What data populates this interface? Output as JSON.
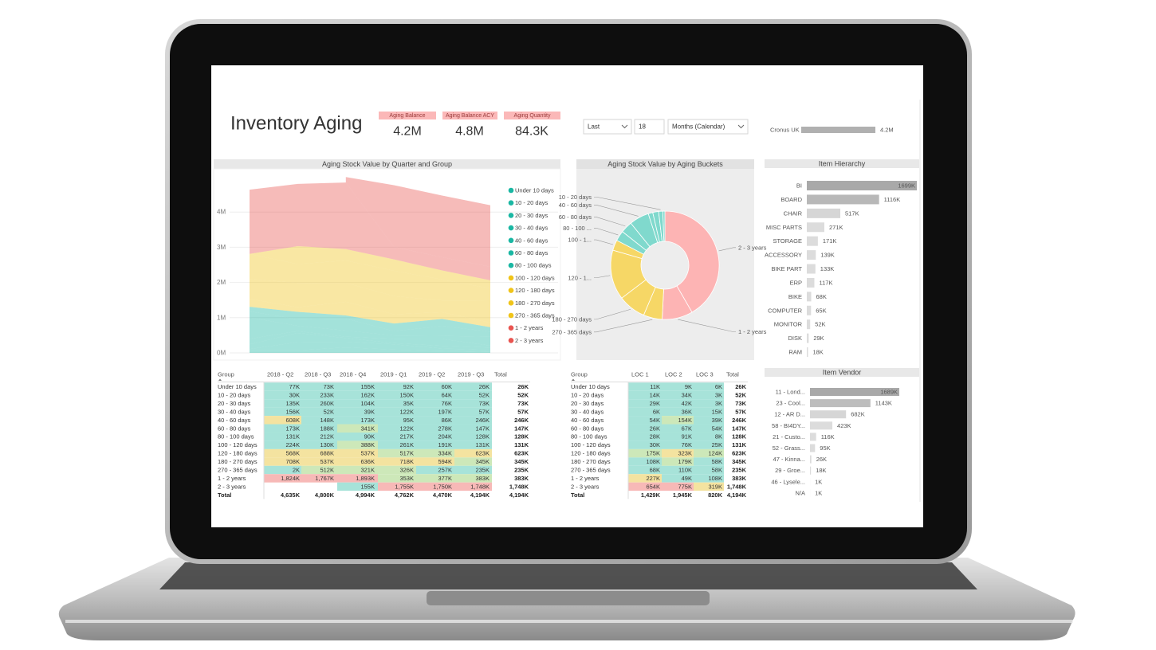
{
  "header": {
    "title": "Inventory Aging"
  },
  "cards": [
    {
      "label": "Aging Balance",
      "value": "4.2M"
    },
    {
      "label": "Aging Balance ACY",
      "value": "4.8M"
    },
    {
      "label": "Aging Quantity",
      "value": "84.3K"
    }
  ],
  "slicers": [
    "Last",
    "18",
    "Months (Calendar)"
  ],
  "chart_data": [
    {
      "type": "area",
      "title": "Aging Stock Value by Quarter and Group",
      "stacked": true,
      "ylim": [
        0,
        5000000
      ],
      "yticks": [
        {
          "value": 0,
          "label": "0M"
        },
        {
          "value": 1000000,
          "label": "1M"
        },
        {
          "value": 2000000,
          "label": "2M"
        },
        {
          "value": 3000000,
          "label": "3M"
        },
        {
          "value": 4000000,
          "label": "4M"
        }
      ],
      "grid": true,
      "legend": "right",
      "series": [
        {
          "name": "Under 10 days",
          "color": "#1ab7a3",
          "values": [
            77000,
            73000,
            155000,
            92000,
            60000,
            26000
          ]
        },
        {
          "name": "10 - 20 days",
          "color": "#1ab7a3",
          "values": [
            30000,
            233000,
            162000,
            150000,
            64000,
            52000
          ]
        },
        {
          "name": "20 - 30 days",
          "color": "#1ab7a3",
          "values": [
            135000,
            260000,
            104000,
            35000,
            76000,
            73000
          ]
        },
        {
          "name": "30 - 40 days",
          "color": "#1ab7a3",
          "values": [
            156000,
            52000,
            39000,
            122000,
            197000,
            57000
          ]
        },
        {
          "name": "40 - 60 days",
          "color": "#1ab7a3",
          "values": [
            608000,
            148000,
            173000,
            95000,
            86000,
            246000
          ]
        },
        {
          "name": "60 - 80 days",
          "color": "#1ab7a3",
          "values": [
            173000,
            188000,
            341000,
            122000,
            278000,
            147000
          ]
        },
        {
          "name": "80 - 100 days",
          "color": "#1ab7a3",
          "values": [
            131000,
            212000,
            90000,
            217000,
            204000,
            128000
          ]
        },
        {
          "name": "100 - 120 days",
          "color": "#f0c419",
          "values": [
            224000,
            130000,
            388000,
            261000,
            191000,
            131000
          ]
        },
        {
          "name": "120 - 180 days",
          "color": "#f0c419",
          "values": [
            568000,
            688000,
            537000,
            517000,
            334000,
            623000
          ]
        },
        {
          "name": "180 - 270 days",
          "color": "#f0c419",
          "values": [
            708000,
            537000,
            636000,
            718000,
            594000,
            345000
          ]
        },
        {
          "name": "270 - 365 days",
          "color": "#f0c419",
          "values": [
            2000,
            512000,
            321000,
            326000,
            257000,
            235000
          ]
        },
        {
          "name": "1 - 2 years",
          "color": "#e95450",
          "values": [
            1824000,
            1767000,
            1893000,
            353000,
            377000,
            383000
          ]
        },
        {
          "name": "2 - 3 years",
          "color": "#e95450",
          "values": [
            null,
            null,
            155000,
            1755000,
            1750000,
            1748000
          ]
        }
      ]
    },
    {
      "type": "donut",
      "title": "Aging Stock Value by Aging Buckets",
      "categories": [
        "2 - 3 years",
        "1 - 2 years",
        "270 - 365 days",
        "180 - 270 days",
        "120 - 1...",
        "100 - 1...",
        "80 - 100 ...",
        "60 - 80 days",
        "40 - 60 days",
        null,
        null,
        "10 - 20 days",
        null
      ],
      "values": [
        1748,
        383,
        235,
        345,
        623,
        131,
        128,
        147,
        246,
        57,
        73,
        52,
        26
      ],
      "colors": [
        "#fdb4b4",
        "#fdb4b4",
        "#f6d766",
        "#f6d766",
        "#f6d766",
        "#f6d766",
        "#80d9cd",
        "#80d9cd",
        "#80d9cd",
        "#80d9cd",
        "#80d9cd",
        "#80d9cd",
        "#80d9cd"
      ]
    },
    {
      "type": "hbar",
      "categories": [
        "Cronus UK"
      ],
      "values": [
        4.2
      ],
      "value_labels": [
        "4.2M"
      ],
      "colors": [
        "#b0b0b0"
      ]
    },
    {
      "type": "hbar",
      "title": "Item Hierarchy",
      "categories": [
        "BI",
        "BOARD",
        "CHAIR",
        "MISC PARTS",
        "STORAGE",
        "ACCESSORY",
        "BIKE PART",
        "ERP",
        "BIKE",
        "COMPUTER",
        "MONITOR",
        "DISK",
        "RAM"
      ],
      "values": [
        1699,
        1116,
        517,
        271,
        171,
        139,
        133,
        117,
        68,
        65,
        52,
        29,
        18
      ],
      "value_labels": [
        "1699K",
        "1116K",
        "517K",
        "271K",
        "171K",
        "139K",
        "133K",
        "117K",
        "68K",
        "65K",
        "52K",
        "29K",
        "18K"
      ],
      "colors": [
        "#a9a9a9",
        "#b8b8b8",
        "#d6d6d6",
        "#dcdcdc",
        "#dcdcdc",
        "#dcdcdc",
        "#dcdcdc",
        "#dcdcdc",
        "#dcdcdc",
        "#dcdcdc",
        "#dcdcdc",
        "#dcdcdc",
        "#dcdcdc"
      ]
    },
    {
      "type": "hbar",
      "title": "Item Vendor",
      "categories": [
        "11 - Lond...",
        "23 - Cool...",
        "12 - AR D...",
        "58 - BI4DY...",
        "21 - Custo...",
        "52 - Grass...",
        "47 - Kinna...",
        "29 - Groe...",
        "46 - Lysele...",
        "N/A"
      ],
      "values": [
        1689,
        1143,
        682,
        423,
        116,
        95,
        26,
        18,
        1,
        1
      ],
      "value_labels": [
        "1689K",
        "1143K",
        "682K",
        "423K",
        "116K",
        "95K",
        "26K",
        "18K",
        "1K",
        "1K"
      ],
      "colors": [
        "#a9a9a9",
        "#bdbdbd",
        "#d6d6d6",
        "#dcdcdc",
        "#dcdcdc",
        "#dcdcdc",
        "#dcdcdc",
        "#dcdcdc",
        "#dcdcdc",
        "#dcdcdc"
      ]
    }
  ],
  "tables": [
    {
      "columns": [
        "Group",
        "2018 - Q2",
        "2018 - Q3",
        "2018 - Q4",
        "2019 - Q1",
        "2019 - Q2",
        "2019 - Q3",
        "Total"
      ],
      "rows": [
        [
          "Under 10 days",
          "77K",
          "73K",
          "155K",
          "92K",
          "60K",
          "26K",
          "26K"
        ],
        [
          "10 - 20 days",
          "30K",
          "233K",
          "162K",
          "150K",
          "64K",
          "52K",
          "52K"
        ],
        [
          "20 - 30 days",
          "135K",
          "260K",
          "104K",
          "35K",
          "76K",
          "73K",
          "73K"
        ],
        [
          "30 - 40 days",
          "156K",
          "52K",
          "39K",
          "122K",
          "197K",
          "57K",
          "57K"
        ],
        [
          "40 - 60 days",
          "608K",
          "148K",
          "173K",
          "95K",
          "86K",
          "246K",
          "246K"
        ],
        [
          "60 - 80 days",
          "173K",
          "188K",
          "341K",
          "122K",
          "278K",
          "147K",
          "147K"
        ],
        [
          "80 - 100 days",
          "131K",
          "212K",
          "90K",
          "217K",
          "204K",
          "128K",
          "128K"
        ],
        [
          "100 - 120 days",
          "224K",
          "130K",
          "388K",
          "261K",
          "191K",
          "131K",
          "131K"
        ],
        [
          "120 - 180 days",
          "568K",
          "688K",
          "537K",
          "517K",
          "334K",
          "623K",
          "623K"
        ],
        [
          "180 - 270 days",
          "708K",
          "537K",
          "636K",
          "718K",
          "594K",
          "345K",
          "345K"
        ],
        [
          "270 - 365 days",
          "2K",
          "512K",
          "321K",
          "326K",
          "257K",
          "235K",
          "235K"
        ],
        [
          "1 - 2 years",
          "1,824K",
          "1,767K",
          "1,893K",
          "353K",
          "377K",
          "383K",
          "383K"
        ],
        [
          "2 - 3 years",
          null,
          null,
          "155K",
          "1,755K",
          "1,750K",
          "1,748K",
          "1,748K"
        ],
        [
          "Total",
          "4,635K",
          "4,800K",
          "4,994K",
          "4,762K",
          "4,470K",
          "4,194K",
          "4,194K"
        ]
      ]
    },
    {
      "columns": [
        "Group",
        "LOC 1",
        "LOC 2",
        "LOC 3",
        "Total"
      ],
      "rows": [
        [
          "Under 10 days",
          "11K",
          "9K",
          "6K",
          "26K"
        ],
        [
          "10 - 20 days",
          "14K",
          "34K",
          "3K",
          "52K"
        ],
        [
          "20 - 30 days",
          "29K",
          "42K",
          "3K",
          "73K"
        ],
        [
          "30 - 40 days",
          "6K",
          "36K",
          "15K",
          "57K"
        ],
        [
          "40 - 60 days",
          "54K",
          "154K",
          "39K",
          "246K"
        ],
        [
          "60 - 80 days",
          "26K",
          "67K",
          "54K",
          "147K"
        ],
        [
          "80 - 100 days",
          "28K",
          "91K",
          "8K",
          "128K"
        ],
        [
          "100 - 120 days",
          "30K",
          "76K",
          "25K",
          "131K"
        ],
        [
          "120 - 180 days",
          "175K",
          "323K",
          "124K",
          "623K"
        ],
        [
          "180 - 270 days",
          "108K",
          "179K",
          "58K",
          "345K"
        ],
        [
          "270 - 365 days",
          "68K",
          "110K",
          "58K",
          "235K"
        ],
        [
          "1 - 2 years",
          "227K",
          "49K",
          "108K",
          "383K"
        ],
        [
          "2 - 3 years",
          "654K",
          "775K",
          "319K",
          "1,748K"
        ],
        [
          "Total",
          "1,429K",
          "1,945K",
          "820K",
          "4,194K"
        ]
      ]
    }
  ]
}
